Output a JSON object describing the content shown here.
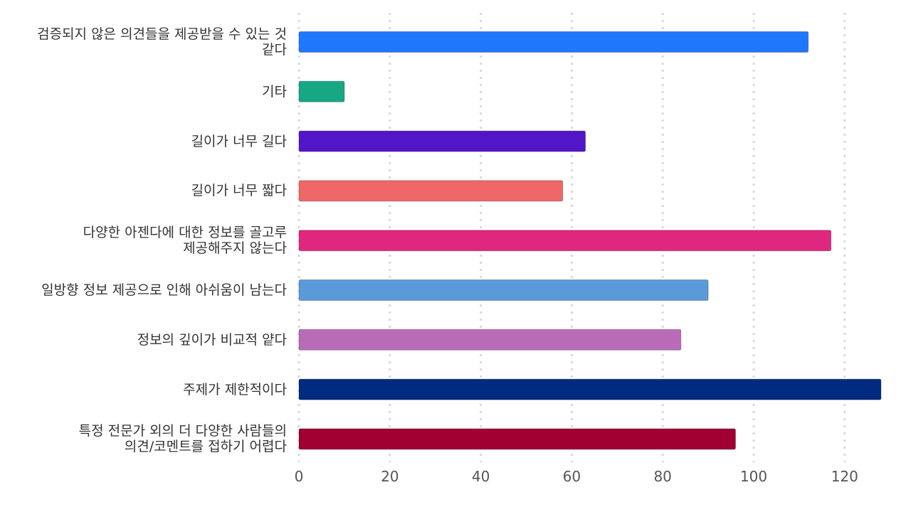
{
  "chart_data": {
    "type": "bar",
    "orientation": "horizontal",
    "title": "",
    "xlabel": "",
    "ylabel": "",
    "categories": [
      "검증되지 않은 의견들을 제공받을 수 있는 것\n같다",
      "기타",
      "길이가 너무 길다",
      "길이가 너무 짧다",
      "다양한 아젠다에 대한 정보를 골고루\n제공해주지 않는다",
      "일방향 정보 제공으로 인해 아쉬움이 남는다",
      "정보의 깊이가 비교적 얕다",
      "주제가 제한적이다",
      "특정 전문가 외의 더 다양한 사람들의\n의견/코멘트를 접하기 어렵다"
    ],
    "values": [
      112,
      10,
      63,
      58,
      117,
      90,
      84,
      128,
      96
    ],
    "colors": [
      "#1f77fb",
      "#17a883",
      "#5216c8",
      "#ef6767",
      "#df2780",
      "#5a9ad9",
      "#b96bb8",
      "#002b80",
      "#a10033"
    ],
    "xlim": [
      0,
      128
    ],
    "xticks": [
      "0",
      "20",
      "40",
      "60",
      "80",
      "100",
      "120"
    ],
    "grid": true,
    "legend": "none"
  }
}
